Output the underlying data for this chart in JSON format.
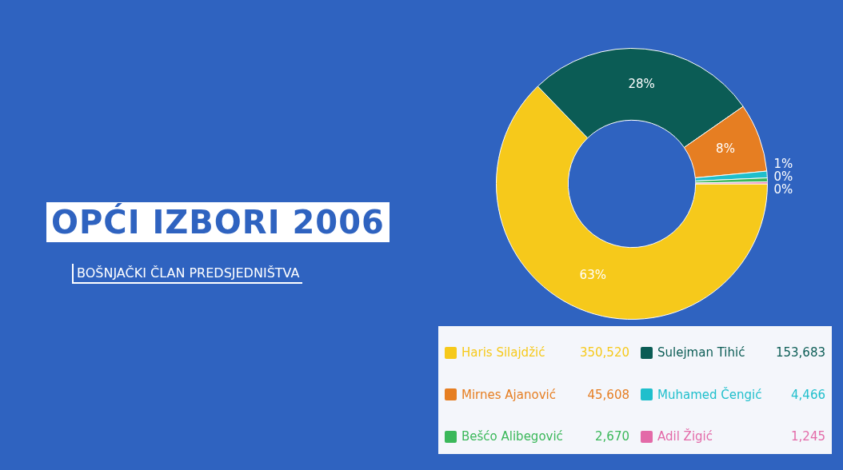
{
  "chart_data": {
    "type": "donut",
    "title": "OPĆI IZBORI 2006",
    "subtitle": "BOŠNJAČKI ČLAN PREDSJEDNIŠTVA",
    "categories": [
      "Haris Silajdžić",
      "Sulejman Tihić",
      "Mirnes Ajanović",
      "Muhamed Čengić",
      "Bešćo Alibegović",
      "Adil Žigić"
    ],
    "values": [
      350520,
      153683,
      45608,
      4466,
      2670,
      1245
    ],
    "colors": [
      "#f6c91b",
      "#0b5c55",
      "#e67e22",
      "#1fbfcc",
      "#3bb85a",
      "#e36aa8"
    ],
    "value_labels": [
      "350,520",
      "153,683",
      "45,608",
      "4,466",
      "2,670",
      "1,245"
    ],
    "annotations": [
      "63%",
      "28%",
      "8%",
      "1%",
      "0%",
      "0%"
    ],
    "legend": "bottom"
  }
}
